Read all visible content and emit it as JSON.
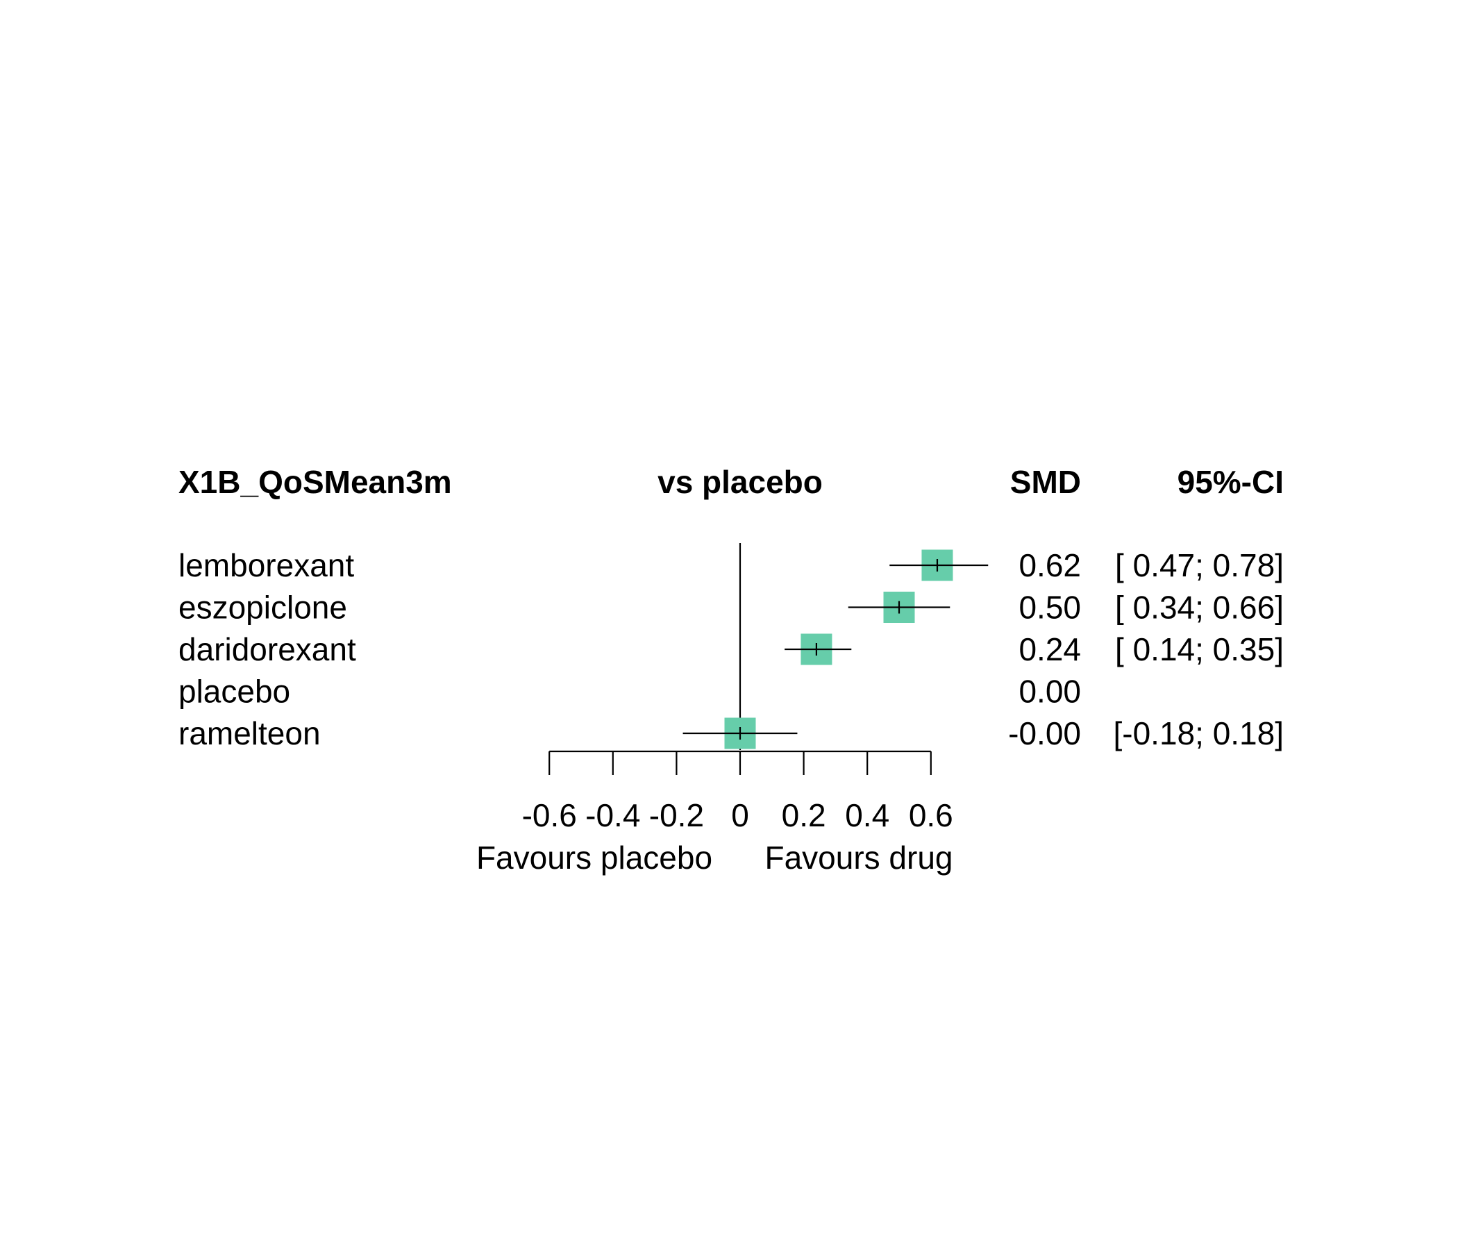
{
  "chart_data": {
    "type": "forest",
    "headers": {
      "outcome": "X1B_QoSMean3m",
      "comparison": "vs placebo",
      "effect": "SMD",
      "ci": "95%-CI"
    },
    "rows": [
      {
        "label": "lemborexant",
        "smd": 0.62,
        "lower": 0.47,
        "upper": 0.78,
        "smd_text": "0.62",
        "ci_text": "[ 0.47; 0.78]"
      },
      {
        "label": "eszopiclone",
        "smd": 0.5,
        "lower": 0.34,
        "upper": 0.66,
        "smd_text": "0.50",
        "ci_text": "[ 0.34; 0.66]"
      },
      {
        "label": "daridorexant",
        "smd": 0.24,
        "lower": 0.14,
        "upper": 0.35,
        "smd_text": "0.24",
        "ci_text": "[ 0.14; 0.35]"
      },
      {
        "label": "placebo",
        "smd": 0.0,
        "lower": null,
        "upper": null,
        "smd_text": "0.00",
        "ci_text": ""
      },
      {
        "label": "ramelteon",
        "smd": 0.0,
        "lower": -0.18,
        "upper": 0.18,
        "smd_text": "-0.00",
        "ci_text": "[-0.18; 0.18]"
      }
    ],
    "x_ticks": [
      -0.6,
      -0.4,
      -0.2,
      0,
      0.2,
      0.4,
      0.6
    ],
    "x_tick_labels": [
      "-0.6",
      "-0.4",
      "-0.2",
      "0",
      "0.2",
      "0.4",
      "0.6"
    ],
    "xlim": [
      -0.6,
      0.6
    ],
    "reference_line": 0,
    "left_label": "Favours placebo",
    "right_label": "Favours drug",
    "marker_color": "#66CDAA"
  }
}
